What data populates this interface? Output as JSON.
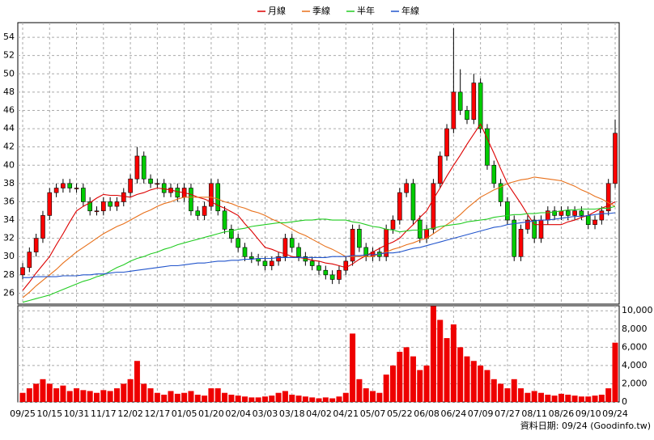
{
  "chart_data": {
    "type": "candlestick",
    "categories": [
      "09/25",
      null,
      null,
      null,
      "10/15",
      null,
      null,
      null,
      "10/31",
      null,
      null,
      null,
      "11/17",
      null,
      null,
      null,
      "12/02",
      null,
      null,
      null,
      "12/17",
      null,
      null,
      null,
      "01/05",
      null,
      null,
      null,
      "01/20",
      null,
      null,
      null,
      "02/04",
      null,
      null,
      null,
      "03/03",
      null,
      null,
      null,
      "03/18",
      null,
      null,
      null,
      "04/02",
      null,
      null,
      null,
      "04/21",
      null,
      null,
      null,
      "05/07",
      null,
      null,
      null,
      "05/22",
      null,
      null,
      null,
      "06/08",
      null,
      null,
      null,
      "06/24",
      null,
      null,
      null,
      "07/09",
      null,
      null,
      null,
      "07/27",
      null,
      null,
      null,
      "08/11",
      null,
      null,
      null,
      "08/26",
      null,
      null,
      null,
      "09/10",
      null,
      null,
      null,
      "09/24"
    ],
    "open": [
      28,
      28.8,
      30.5,
      32,
      34.5,
      37,
      37.5,
      38,
      37.5,
      37.5,
      36,
      35,
      35,
      36,
      35.5,
      36,
      37,
      38.5,
      41,
      38.5,
      38,
      38,
      37,
      37.5,
      36.5,
      37.5,
      35,
      34.5,
      35.5,
      38,
      35,
      33,
      32,
      31,
      30,
      29.8,
      29.5,
      29,
      29.5,
      30,
      32,
      31,
      30,
      29.5,
      29,
      28.5,
      28,
      27.5,
      28.5,
      29.5,
      33,
      31,
      30,
      30.5,
      30,
      33,
      34,
      37,
      38,
      34,
      32,
      33,
      38,
      41,
      44,
      48,
      46,
      45,
      49,
      44,
      40,
      38,
      36,
      34,
      30,
      33,
      34,
      32,
      34,
      35,
      34.5,
      35,
      34.5,
      35,
      34.5,
      33.5,
      34,
      35,
      38
    ],
    "high": [
      29.3,
      31,
      32.5,
      35,
      37.5,
      38,
      38.5,
      38.5,
      38,
      38,
      36.5,
      35.5,
      36.5,
      36.5,
      36.5,
      37.5,
      39,
      42,
      41.5,
      39,
      38.5,
      38.5,
      38,
      38,
      38,
      38,
      35.5,
      36,
      38.5,
      38.5,
      35.5,
      33.5,
      32.5,
      31.5,
      30.5,
      30.3,
      30,
      30,
      30.5,
      32.5,
      32.5,
      31.5,
      30.5,
      30,
      29.5,
      29,
      28.5,
      29,
      30,
      33.5,
      33.5,
      31.5,
      31,
      31,
      33.5,
      34.5,
      37.5,
      38.5,
      38.5,
      34.5,
      33.5,
      38.5,
      41.5,
      44.5,
      55,
      50.5,
      46.5,
      50,
      49.5,
      44.5,
      40.5,
      38.5,
      36.5,
      34.5,
      33.5,
      34.5,
      34.5,
      34.5,
      35.5,
      35.5,
      35.5,
      35.5,
      35.5,
      35.5,
      35,
      34.5,
      35.5,
      38.5,
      45
    ],
    "low": [
      27.5,
      28.3,
      30,
      31.5,
      34,
      36.5,
      37,
      37,
      37,
      35.5,
      34.5,
      34.5,
      34.5,
      35,
      35,
      35.5,
      36.5,
      38,
      38,
      37.5,
      37.5,
      36.5,
      36.5,
      36,
      36,
      34.5,
      34,
      34,
      35,
      34.5,
      32.5,
      31.5,
      30.5,
      29.5,
      29.3,
      29,
      28.5,
      28.5,
      29,
      29.5,
      30.5,
      29.5,
      29,
      28.5,
      28,
      27.5,
      27,
      27,
      28,
      29,
      30.5,
      29.5,
      29.5,
      29.5,
      29.5,
      32.5,
      33.5,
      36.5,
      33.5,
      31.5,
      31.5,
      32.5,
      37.5,
      40.5,
      43.5,
      45.5,
      44.5,
      44.5,
      43.5,
      39.5,
      37.5,
      35.5,
      33.5,
      29.5,
      29.5,
      32.5,
      31.5,
      31.5,
      33.5,
      34,
      34,
      34,
      34,
      34,
      33,
      33,
      33.5,
      34.5,
      37.5
    ],
    "close": [
      28.8,
      30.5,
      32,
      34.5,
      37,
      37.5,
      38,
      37.5,
      37.5,
      36,
      35,
      35,
      36,
      35.5,
      36,
      37,
      38.5,
      41,
      38.5,
      38,
      38,
      37,
      37.5,
      36.5,
      37.5,
      35,
      34.5,
      35.5,
      38,
      35,
      33,
      32,
      31,
      30,
      29.8,
      29.5,
      29,
      29.5,
      30,
      32,
      31,
      30,
      29.5,
      29,
      28.5,
      28,
      27.5,
      28.5,
      29.5,
      33,
      31,
      30,
      30.5,
      30,
      33,
      34,
      37,
      38,
      34,
      32,
      33,
      38,
      41,
      44,
      48,
      46,
      45,
      49,
      44,
      40,
      38,
      36,
      34,
      30,
      33,
      34,
      32,
      34,
      35,
      34.5,
      35,
      34.5,
      35,
      34.5,
      33.5,
      34,
      35,
      38,
      43.5
    ],
    "up_color": "#ff0000",
    "down_color": "#00cc00",
    "series": [
      {
        "name": "月線",
        "color": "#dd0000",
        "values": [
          26.3,
          27.2,
          28.2,
          29.1,
          30,
          31.3,
          32.5,
          33.8,
          35,
          35.5,
          35.9,
          36.4,
          36.8,
          36.7,
          36.7,
          36.6,
          36.5,
          36.8,
          37,
          37.3,
          37.5,
          37.4,
          37.3,
          37.1,
          37,
          36.8,
          36.5,
          36.3,
          36,
          35.6,
          35.3,
          34.9,
          34.5,
          33.6,
          32.8,
          31.9,
          31,
          30.8,
          30.5,
          30.3,
          30,
          29.9,
          29.8,
          29.6,
          29.5,
          29.3,
          29.2,
          29,
          28.8,
          29.2,
          29.7,
          30.1,
          30.5,
          30.9,
          31.3,
          31.6,
          32,
          32.8,
          33.5,
          34.3,
          35,
          36.3,
          37.5,
          38.8,
          40,
          41.1,
          42.3,
          43.4,
          44.5,
          42.9,
          41.3,
          39.6,
          38,
          36.9,
          35.8,
          34.6,
          33.5,
          33.5,
          33.5,
          33.5,
          33.5,
          33.8,
          34,
          34.3,
          34.5,
          34.9,
          35.3,
          35.6,
          36
        ]
      },
      {
        "name": "季線",
        "color": "#e8701a",
        "values": [
          25.5,
          26.1,
          26.8,
          27.4,
          28,
          28.6,
          29.3,
          29.9,
          30.5,
          31,
          31.5,
          32,
          32.5,
          32.9,
          33.3,
          33.6,
          34,
          34.4,
          34.8,
          35.1,
          35.5,
          35.8,
          36,
          36.3,
          36.5,
          36.5,
          36.5,
          36.5,
          36.5,
          36.3,
          36,
          35.8,
          35.5,
          35.3,
          35,
          34.8,
          34.5,
          34.1,
          33.8,
          33.4,
          33,
          32.6,
          32.3,
          31.9,
          31.5,
          31.1,
          30.8,
          30.4,
          30,
          30,
          30,
          30,
          30,
          30.3,
          30.5,
          30.8,
          31,
          31.3,
          31.5,
          31.8,
          32,
          32.5,
          33,
          33.5,
          34,
          34.6,
          35.3,
          35.9,
          36.5,
          36.9,
          37.3,
          37.6,
          38,
          38.2,
          38.4,
          38.5,
          38.7,
          38.6,
          38.5,
          38.4,
          38.3,
          38,
          37.7,
          37.3,
          37,
          36.6,
          36.3,
          35.9,
          35.5
        ]
      },
      {
        "name": "半年",
        "color": "#22cc22",
        "values": [
          25,
          25.2,
          25.4,
          25.6,
          25.8,
          26.1,
          26.4,
          26.7,
          27,
          27.3,
          27.5,
          27.8,
          28,
          28.4,
          28.8,
          29.1,
          29.5,
          29.8,
          30,
          30.3,
          30.5,
          30.8,
          31,
          31.3,
          31.5,
          31.7,
          31.9,
          32.1,
          32.3,
          32.5,
          32.7,
          32.8,
          33,
          33.1,
          33.3,
          33.4,
          33.5,
          33.6,
          33.7,
          33.7,
          33.8,
          33.9,
          34,
          34,
          34.1,
          34.1,
          34,
          34,
          34,
          33.8,
          33.7,
          33.5,
          33.3,
          33.2,
          33,
          32.9,
          32.7,
          32.8,
          32.9,
          32.9,
          33,
          33.1,
          33.3,
          33.4,
          33.5,
          33.6,
          33.8,
          33.9,
          34,
          34.1,
          34.3,
          34.4,
          34.5,
          34.6,
          34.6,
          34.7,
          34.7,
          34.8,
          34.8,
          34.9,
          35,
          35.1,
          35.1,
          35.2,
          35.2,
          35.2,
          35.3,
          35.3,
          35.5
        ]
      },
      {
        "name": "年線",
        "color": "#2255cc",
        "values": [
          27.7,
          27.7,
          27.8,
          27.8,
          27.8,
          27.8,
          27.9,
          27.9,
          27.9,
          28,
          28,
          28.1,
          28.1,
          28.2,
          28.3,
          28.3,
          28.4,
          28.5,
          28.6,
          28.7,
          28.8,
          28.9,
          29,
          29,
          29.1,
          29.2,
          29.3,
          29.3,
          29.4,
          29.5,
          29.5,
          29.6,
          29.6,
          29.7,
          29.7,
          29.8,
          29.8,
          29.8,
          29.9,
          29.9,
          29.9,
          29.9,
          29.9,
          29.9,
          29.9,
          29.9,
          30,
          30,
          30,
          30.1,
          30.1,
          30.2,
          30.2,
          30.3,
          30.4,
          30.4,
          30.5,
          30.7,
          30.9,
          31,
          31.2,
          31.4,
          31.6,
          31.8,
          32,
          32.2,
          32.4,
          32.6,
          32.8,
          33,
          33.2,
          33.3,
          33.5,
          33.6,
          33.7,
          33.8,
          33.9,
          34,
          34,
          34.1,
          34.2,
          34.3,
          34.4,
          34.4,
          34.5,
          34.6,
          34.7,
          34.7,
          34.8
        ]
      }
    ],
    "ylim": [
      24.8,
      55.6
    ],
    "yticks": [
      26,
      28,
      30,
      32,
      34,
      36,
      38,
      40,
      42,
      44,
      46,
      48,
      50,
      52,
      54
    ],
    "grid": true,
    "volume": {
      "color": "#ee0000",
      "values": [
        1000,
        1500,
        2000,
        2500,
        2000,
        1500,
        1800,
        1200,
        1500,
        1300,
        1200,
        1000,
        1300,
        1200,
        1500,
        2000,
        2500,
        4500,
        2000,
        1500,
        1000,
        800,
        1200,
        900,
        1000,
        1200,
        800,
        700,
        1500,
        1500,
        1000,
        800,
        700,
        600,
        500,
        500,
        600,
        700,
        1000,
        1200,
        800,
        700,
        600,
        500,
        400,
        500,
        400,
        600,
        1000,
        7500,
        2500,
        1500,
        1200,
        1000,
        3000,
        4000,
        5500,
        6000,
        5000,
        3500,
        4000,
        10500,
        9000,
        7000,
        8500,
        6000,
        5000,
        4500,
        4000,
        3500,
        2500,
        2000,
        1500,
        2500,
        1500,
        1000,
        1200,
        1000,
        800,
        700,
        900,
        800,
        700,
        600,
        600,
        700,
        800,
        1500,
        6500
      ],
      "ylim": [
        0,
        10550
      ],
      "yticks": [
        0,
        {
          "value": 2000,
          "label": "2,000"
        },
        {
          "value": 4000,
          "label": "4,000"
        },
        {
          "value": 6000,
          "label": "6,000"
        },
        {
          "value": 8000,
          "label": "8,000"
        },
        {
          "value": 10000,
          "label": "10,000"
        }
      ]
    },
    "footer": "資料日期: 09/24 (Goodinfo.tw)"
  }
}
